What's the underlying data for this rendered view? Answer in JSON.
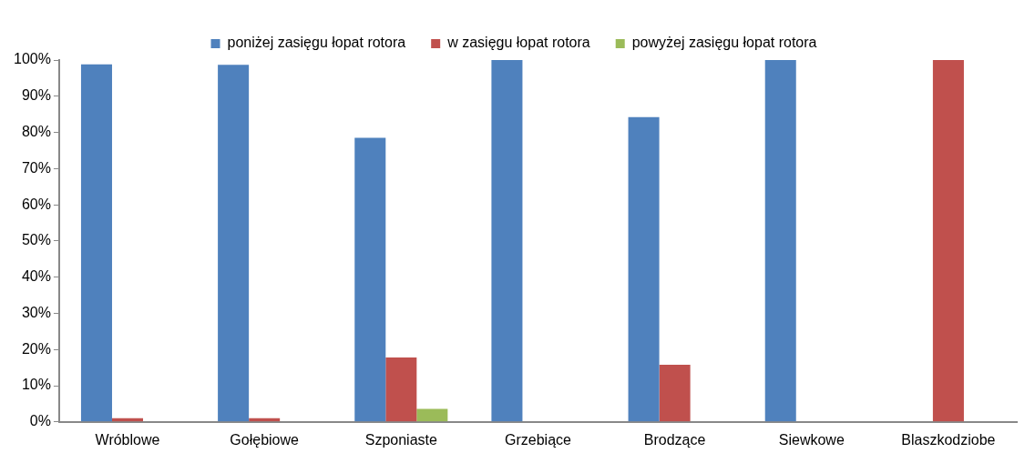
{
  "chart_data": {
    "type": "bar",
    "categories": [
      "Wróblowe",
      "Gołębiowe",
      "Szponiaste",
      "Grzebiące",
      "Brodzące",
      "Siewkowe",
      "Blaszkodziobe"
    ],
    "series": [
      {
        "name": "poniżej zasięgu łopat rotora",
        "color": "#4f81bd",
        "values": [
          98.8,
          98.7,
          78.5,
          100,
          84.2,
          100,
          null
        ]
      },
      {
        "name": "w zasięgu łopat rotora",
        "color": "#c0504d",
        "values": [
          1,
          1,
          17.8,
          null,
          15.8,
          null,
          100
        ]
      },
      {
        "name": "powyżej zasięgu łopat rotora",
        "color": "#9bbb59",
        "values": [
          null,
          null,
          3.6,
          null,
          null,
          null,
          null
        ]
      }
    ],
    "ylim": [
      0,
      100
    ],
    "yticks": [
      {
        "value": 0,
        "label": "0%"
      },
      {
        "value": 10,
        "label": "10%"
      },
      {
        "value": 20,
        "label": "20%"
      },
      {
        "value": 30,
        "label": "30%"
      },
      {
        "value": 40,
        "label": "40%"
      },
      {
        "value": 50,
        "label": "50%"
      },
      {
        "value": 60,
        "label": "60%"
      },
      {
        "value": 70,
        "label": "70%"
      },
      {
        "value": 80,
        "label": "80%"
      },
      {
        "value": 90,
        "label": "90%"
      },
      {
        "value": 100,
        "label": "100%"
      }
    ],
    "grid": false,
    "legend": "top"
  }
}
